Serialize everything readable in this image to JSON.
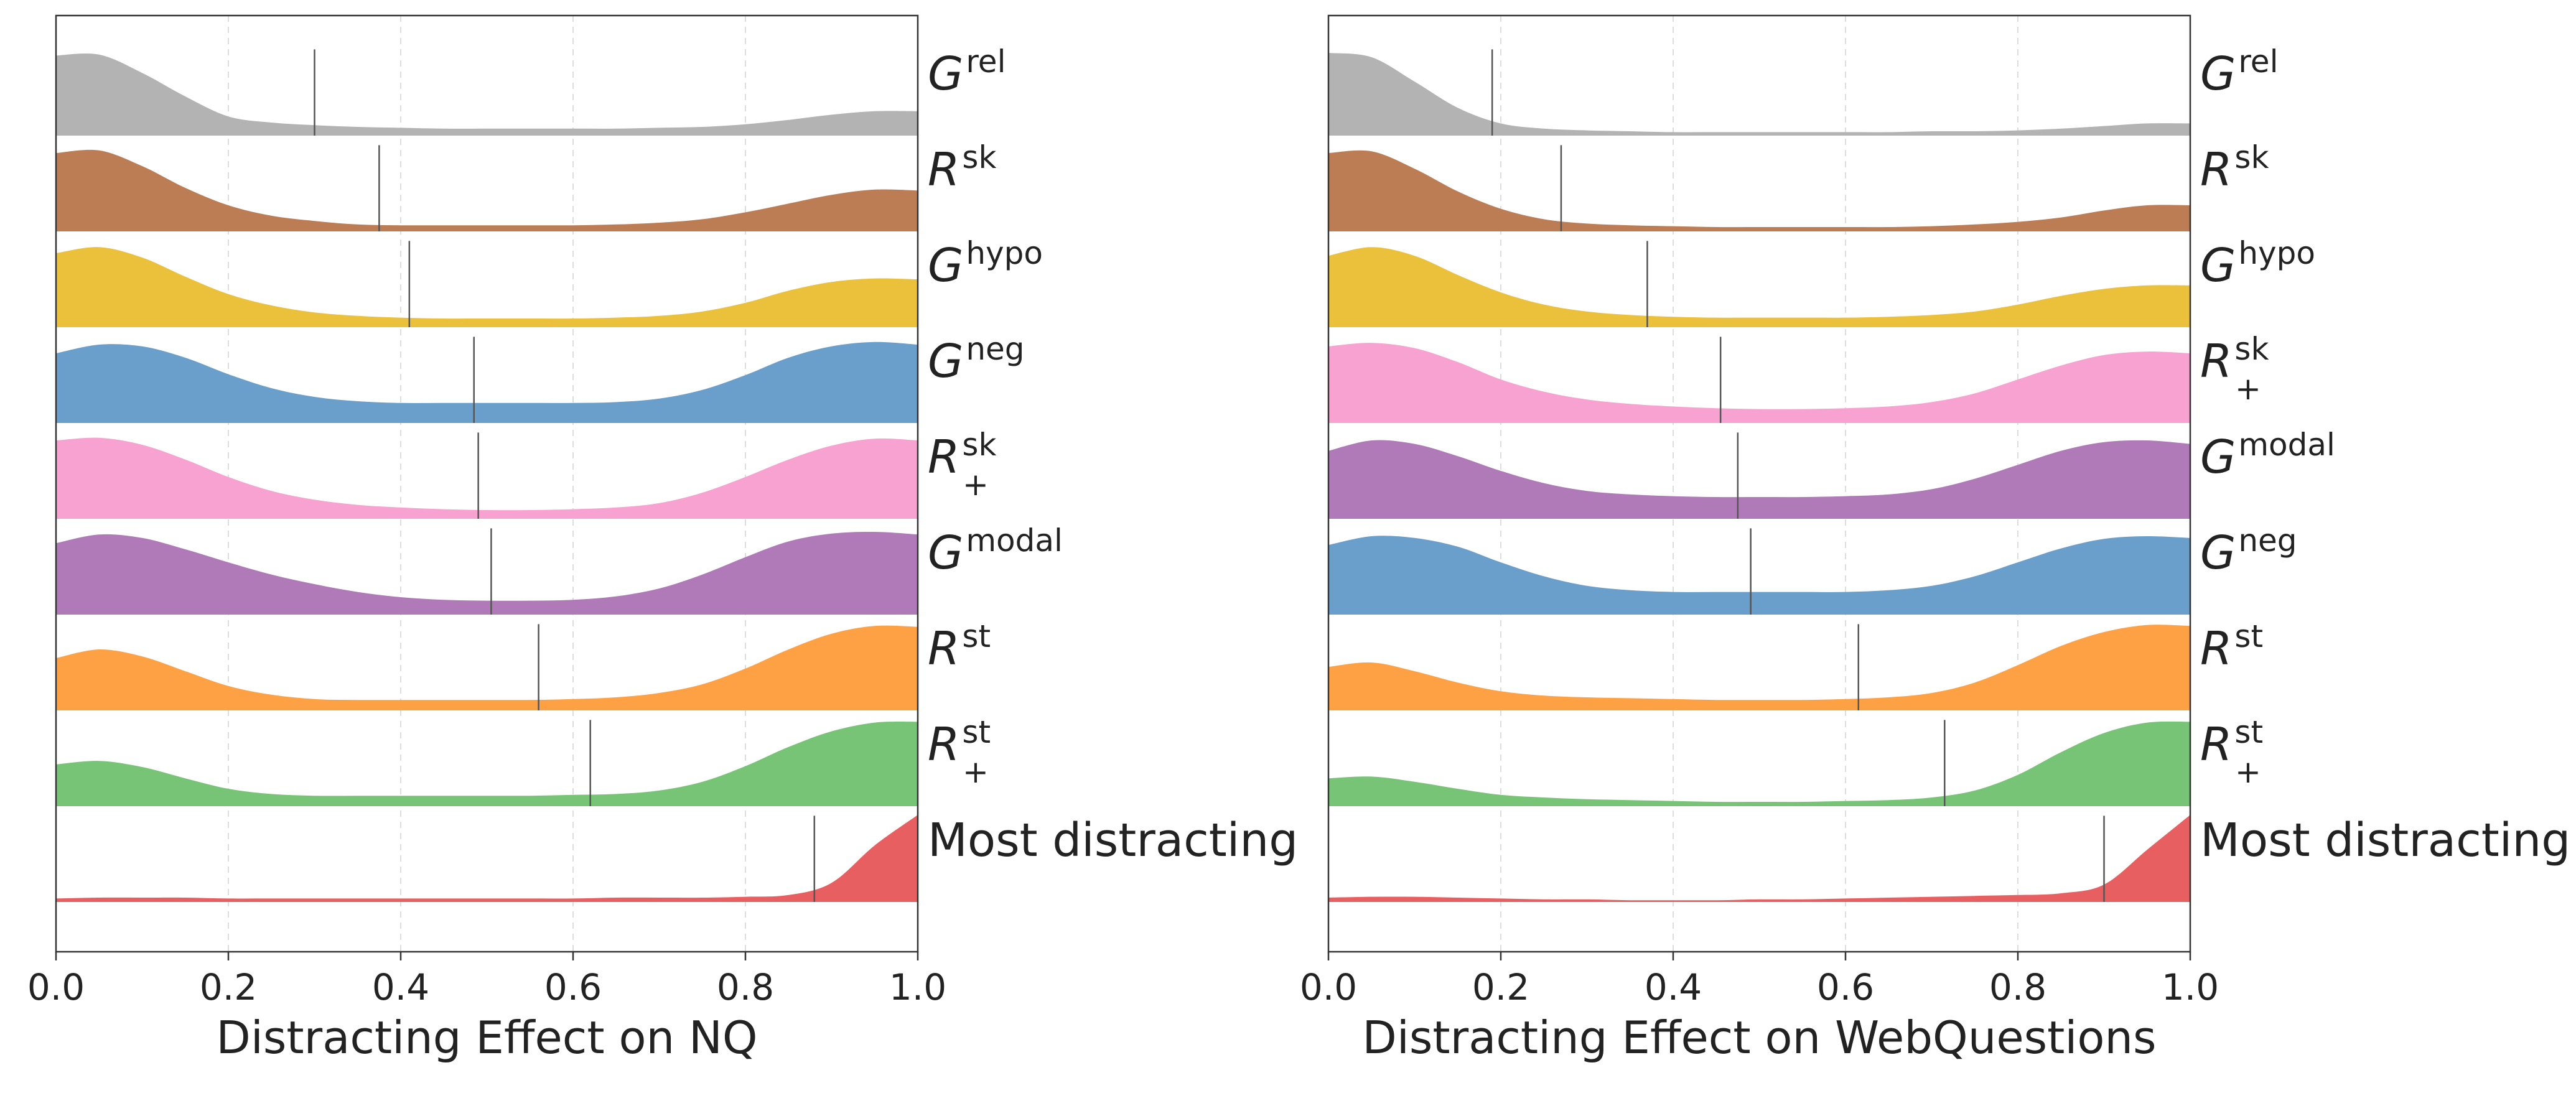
{
  "chart_data": [
    {
      "type": "ridgeline",
      "xlabel": "Distracting Effect on NQ",
      "xlim": [
        0.0,
        1.0
      ],
      "xticks": [
        "0.0",
        "0.2",
        "0.4",
        "0.6",
        "0.8",
        "1.0"
      ],
      "grid": "vertical dashed",
      "series": [
        {
          "base": "G",
          "sup": "rel",
          "sub": "",
          "color": "#b3b3b3",
          "median": 0.3,
          "density": [
            0.92,
            0.93,
            0.72,
            0.45,
            0.22,
            0.15,
            0.12,
            0.1,
            0.09,
            0.08,
            0.08,
            0.08,
            0.08,
            0.08,
            0.09,
            0.1,
            0.13,
            0.18,
            0.24,
            0.28,
            0.28
          ]
        },
        {
          "base": "R",
          "sup": "sk",
          "sub": "",
          "color": "#bc7d55",
          "median": 0.375,
          "density": [
            0.9,
            0.93,
            0.75,
            0.5,
            0.3,
            0.18,
            0.12,
            0.08,
            0.07,
            0.07,
            0.07,
            0.07,
            0.07,
            0.08,
            0.1,
            0.14,
            0.22,
            0.32,
            0.42,
            0.48,
            0.47
          ]
        },
        {
          "base": "G",
          "sup": "hypo",
          "sub": "",
          "color": "#ebc13b",
          "median": 0.41,
          "density": [
            0.85,
            0.92,
            0.8,
            0.58,
            0.38,
            0.25,
            0.17,
            0.13,
            0.11,
            0.1,
            0.1,
            0.1,
            0.1,
            0.11,
            0.13,
            0.18,
            0.28,
            0.42,
            0.52,
            0.56,
            0.55
          ]
        },
        {
          "base": "G",
          "sup": "neg",
          "sub": "",
          "color": "#6a9fcb",
          "median": 0.485,
          "density": [
            0.8,
            0.9,
            0.88,
            0.75,
            0.56,
            0.4,
            0.3,
            0.25,
            0.23,
            0.23,
            0.23,
            0.23,
            0.23,
            0.24,
            0.28,
            0.38,
            0.55,
            0.75,
            0.88,
            0.93,
            0.9
          ]
        },
        {
          "base": "R",
          "sup": "sk",
          "sub": "+",
          "color": "#f7a2d1",
          "median": 0.49,
          "density": [
            0.9,
            0.93,
            0.85,
            0.68,
            0.48,
            0.32,
            0.22,
            0.16,
            0.13,
            0.11,
            0.1,
            0.1,
            0.11,
            0.13,
            0.18,
            0.3,
            0.48,
            0.68,
            0.84,
            0.92,
            0.9
          ]
        },
        {
          "base": "G",
          "sup": "modal",
          "sub": "",
          "color": "#b07ab9",
          "median": 0.505,
          "density": [
            0.82,
            0.92,
            0.88,
            0.75,
            0.6,
            0.46,
            0.35,
            0.26,
            0.2,
            0.17,
            0.16,
            0.16,
            0.17,
            0.21,
            0.3,
            0.46,
            0.66,
            0.84,
            0.93,
            0.95,
            0.92
          ]
        },
        {
          "base": "R",
          "sup": "st",
          "sub": "",
          "color": "#fda144",
          "median": 0.56,
          "density": [
            0.6,
            0.7,
            0.62,
            0.45,
            0.28,
            0.18,
            0.13,
            0.12,
            0.12,
            0.12,
            0.12,
            0.12,
            0.13,
            0.15,
            0.2,
            0.3,
            0.48,
            0.7,
            0.88,
            0.97,
            0.96
          ]
        },
        {
          "base": "R",
          "sup": "st",
          "sub": "+",
          "color": "#78c477",
          "median": 0.62,
          "density": [
            0.48,
            0.52,
            0.45,
            0.32,
            0.2,
            0.14,
            0.12,
            0.12,
            0.12,
            0.12,
            0.12,
            0.12,
            0.13,
            0.14,
            0.18,
            0.28,
            0.46,
            0.68,
            0.86,
            0.96,
            0.97
          ]
        },
        {
          "base": "Most distracting",
          "sup": "",
          "sub": "",
          "color": "#e85f62",
          "median": 0.88,
          "density": [
            0.04,
            0.05,
            0.05,
            0.05,
            0.04,
            0.04,
            0.04,
            0.04,
            0.04,
            0.04,
            0.04,
            0.04,
            0.04,
            0.05,
            0.05,
            0.05,
            0.06,
            0.08,
            0.22,
            0.65,
            1.0
          ]
        }
      ]
    },
    {
      "type": "ridgeline",
      "xlabel": "Distracting Effect on WebQuestions",
      "xlim": [
        0.0,
        1.0
      ],
      "xticks": [
        "0.0",
        "0.2",
        "0.4",
        "0.6",
        "0.8",
        "1.0"
      ],
      "grid": "vertical dashed",
      "series": [
        {
          "base": "G",
          "sup": "rel",
          "sub": "",
          "color": "#b3b3b3",
          "median": 0.19,
          "density": [
            0.95,
            0.9,
            0.62,
            0.32,
            0.14,
            0.08,
            0.06,
            0.05,
            0.04,
            0.04,
            0.04,
            0.04,
            0.04,
            0.04,
            0.05,
            0.05,
            0.06,
            0.08,
            0.11,
            0.14,
            0.14
          ]
        },
        {
          "base": "R",
          "sup": "sk",
          "sub": "",
          "color": "#bc7d55",
          "median": 0.27,
          "density": [
            0.9,
            0.92,
            0.72,
            0.46,
            0.26,
            0.14,
            0.09,
            0.07,
            0.06,
            0.05,
            0.05,
            0.05,
            0.05,
            0.05,
            0.06,
            0.08,
            0.11,
            0.16,
            0.24,
            0.3,
            0.3
          ]
        },
        {
          "base": "G",
          "sup": "hypo",
          "sub": "",
          "color": "#ebc13b",
          "median": 0.37,
          "density": [
            0.82,
            0.92,
            0.82,
            0.6,
            0.4,
            0.26,
            0.18,
            0.14,
            0.12,
            0.11,
            0.11,
            0.11,
            0.11,
            0.12,
            0.14,
            0.18,
            0.26,
            0.36,
            0.44,
            0.48,
            0.48
          ]
        },
        {
          "base": "R",
          "sup": "sk",
          "sub": "+",
          "color": "#f7a2d1",
          "median": 0.455,
          "density": [
            0.88,
            0.92,
            0.86,
            0.7,
            0.5,
            0.36,
            0.27,
            0.22,
            0.19,
            0.17,
            0.16,
            0.16,
            0.17,
            0.19,
            0.24,
            0.34,
            0.5,
            0.66,
            0.78,
            0.82,
            0.8
          ]
        },
        {
          "base": "G",
          "sup": "modal",
          "sub": "",
          "color": "#b07ab9",
          "median": 0.475,
          "density": [
            0.78,
            0.9,
            0.86,
            0.72,
            0.55,
            0.41,
            0.32,
            0.28,
            0.26,
            0.25,
            0.25,
            0.25,
            0.26,
            0.28,
            0.34,
            0.46,
            0.62,
            0.78,
            0.88,
            0.9,
            0.86
          ]
        },
        {
          "base": "G",
          "sup": "neg",
          "sub": "",
          "color": "#6a9fcb",
          "median": 0.49,
          "density": [
            0.8,
            0.9,
            0.88,
            0.78,
            0.6,
            0.44,
            0.33,
            0.28,
            0.26,
            0.26,
            0.26,
            0.26,
            0.26,
            0.28,
            0.33,
            0.44,
            0.6,
            0.76,
            0.87,
            0.9,
            0.88
          ]
        },
        {
          "base": "R",
          "sup": "st",
          "sub": "",
          "color": "#fda144",
          "median": 0.615,
          "density": [
            0.5,
            0.55,
            0.45,
            0.32,
            0.22,
            0.17,
            0.15,
            0.14,
            0.13,
            0.12,
            0.12,
            0.12,
            0.13,
            0.15,
            0.2,
            0.32,
            0.52,
            0.74,
            0.9,
            0.98,
            0.97
          ]
        },
        {
          "base": "R",
          "sup": "st",
          "sub": "+",
          "color": "#78c477",
          "median": 0.715,
          "density": [
            0.32,
            0.34,
            0.28,
            0.2,
            0.13,
            0.1,
            0.08,
            0.07,
            0.06,
            0.05,
            0.05,
            0.05,
            0.06,
            0.07,
            0.1,
            0.18,
            0.36,
            0.62,
            0.84,
            0.96,
            0.97
          ]
        },
        {
          "base": "Most distracting",
          "sup": "",
          "sub": "",
          "color": "#e85f62",
          "median": 0.9,
          "density": [
            0.05,
            0.06,
            0.06,
            0.05,
            0.04,
            0.03,
            0.03,
            0.02,
            0.02,
            0.02,
            0.03,
            0.03,
            0.04,
            0.05,
            0.06,
            0.07,
            0.08,
            0.1,
            0.2,
            0.6,
            1.0
          ]
        }
      ]
    }
  ]
}
